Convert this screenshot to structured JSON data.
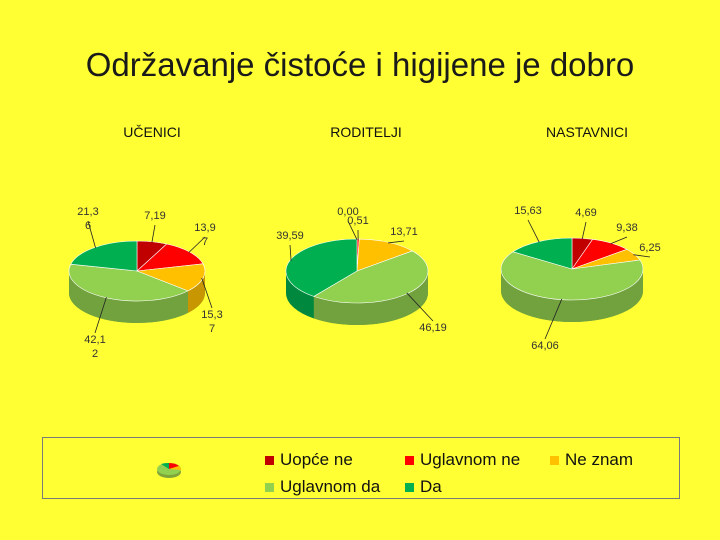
{
  "title": "Održavanje čistoće i higijene je dobro",
  "colors": {
    "uopce_ne": "#C00000",
    "uglavnom_ne": "#FF0000",
    "ne_znam": "#FFC000",
    "uglavnom_da": "#92D050",
    "da": "#00B050"
  },
  "chart_data": [
    {
      "type": "pie",
      "title": "UČENICI",
      "categories": [
        "Uopće ne",
        "Uglavnom ne",
        "Ne znam",
        "Uglavnom da",
        "Da"
      ],
      "values": [
        7.19,
        13.97,
        15.37,
        42.12,
        21.36
      ],
      "labels": [
        [
          "7,19"
        ],
        [
          "13,9",
          "7"
        ],
        [
          "15,3",
          "7"
        ],
        [
          "42,1",
          "2"
        ],
        [
          "21,3",
          "6"
        ]
      ],
      "legend": "bottom"
    },
    {
      "type": "pie",
      "title": "RODITELJI",
      "categories": [
        "Uopće ne",
        "Uglavnom ne",
        "Ne znam",
        "Uglavnom da",
        "Da"
      ],
      "values": [
        0.0,
        0.51,
        13.71,
        46.19,
        39.59
      ],
      "labels": [
        [
          "0,00"
        ],
        [
          "0,51"
        ],
        [
          "13,71"
        ],
        [
          "46,19"
        ],
        [
          "39,59"
        ]
      ],
      "legend": "bottom"
    },
    {
      "type": "pie",
      "title": "NASTAVNICI",
      "categories": [
        "Uopće ne",
        "Uglavnom ne",
        "Ne znam",
        "Uglavnom da",
        "Da"
      ],
      "values": [
        4.69,
        9.38,
        6.25,
        64.06,
        15.63
      ],
      "labels": [
        [
          "4,69"
        ],
        [
          "9,38"
        ],
        [
          "6,25"
        ],
        [
          "64,06"
        ],
        [
          "15,63"
        ]
      ],
      "legend": "bottom"
    }
  ],
  "legend": [
    {
      "label": "Uopće ne",
      "color": "#C00000"
    },
    {
      "label": "Uglavnom ne",
      "color": "#FF0000"
    },
    {
      "label": "Ne znam",
      "color": "#FFC000"
    },
    {
      "label": "Uglavnom da",
      "color": "#92D050"
    },
    {
      "label": "Da",
      "color": "#00B050"
    }
  ]
}
